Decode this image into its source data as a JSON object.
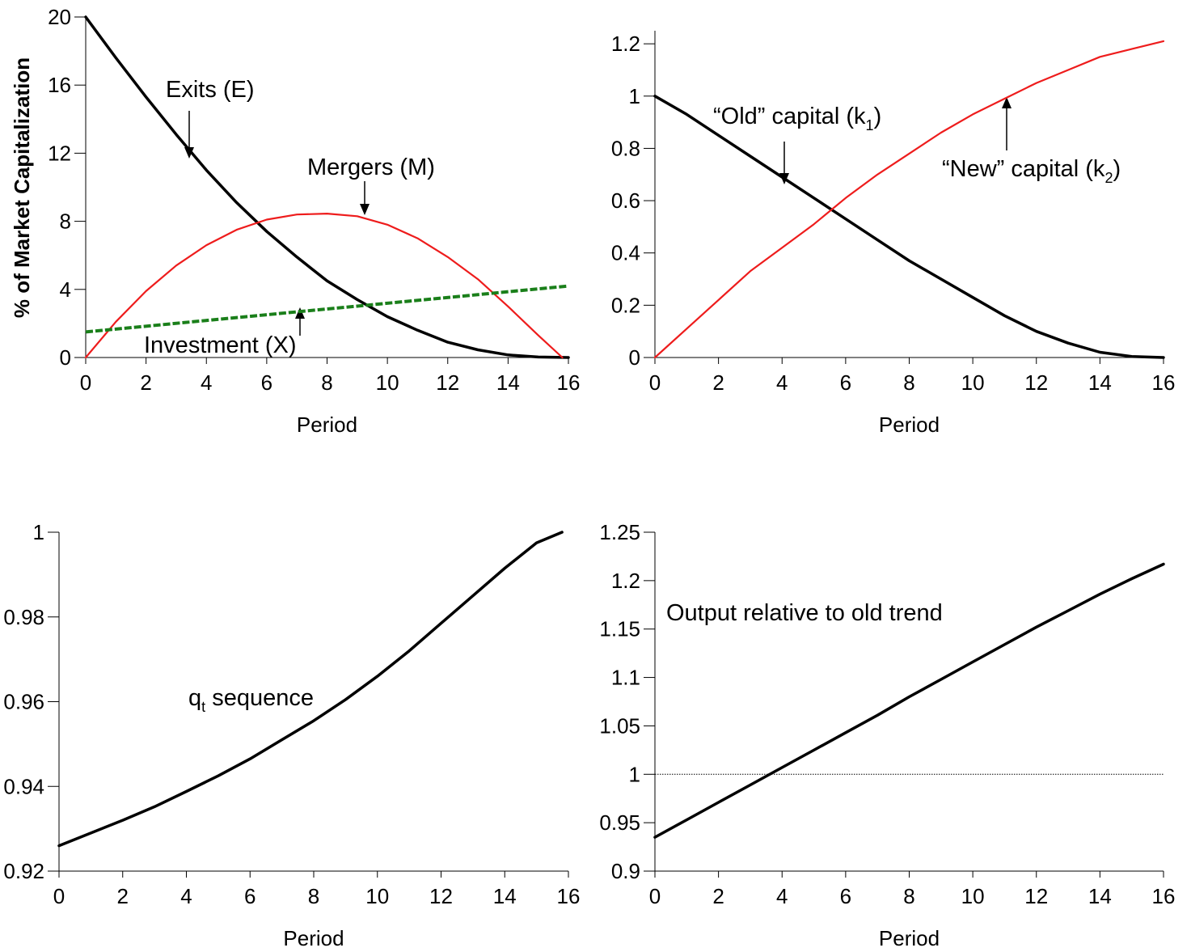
{
  "colors": {
    "black": "#000000",
    "red": "#ee1c1c",
    "green": "#1a7f1a"
  },
  "chart_data": [
    {
      "type": "line",
      "xlabel": "Period",
      "ylabel": "% of Market Capitalization",
      "xlim": [
        0,
        16
      ],
      "ylim": [
        0,
        20
      ],
      "xticks": [
        "0",
        "2",
        "4",
        "6",
        "8",
        "10",
        "12",
        "14",
        "16"
      ],
      "yticks": [
        "0",
        "4",
        "8",
        "12",
        "16",
        "20"
      ],
      "grid": false,
      "series": [
        {
          "name": "Exits (E)",
          "color": "#000000",
          "style": "solid-thick",
          "x": [
            0,
            1,
            2,
            3,
            4,
            5,
            6,
            7,
            8,
            9,
            10,
            11,
            12,
            13,
            14,
            15,
            16
          ],
          "y": [
            20,
            17.6,
            15.3,
            13.1,
            11.0,
            9.1,
            7.4,
            5.9,
            4.5,
            3.4,
            2.4,
            1.6,
            0.9,
            0.45,
            0.15,
            0.03,
            0
          ]
        },
        {
          "name": "Mergers (M)",
          "color": "#ee1c1c",
          "style": "solid",
          "x": [
            0,
            1,
            2,
            3,
            4,
            5,
            6,
            7,
            8,
            9,
            10,
            11,
            12,
            13,
            14,
            15,
            15.8
          ],
          "y": [
            0,
            2.1,
            3.9,
            5.4,
            6.6,
            7.5,
            8.1,
            8.4,
            8.45,
            8.3,
            7.8,
            7.0,
            5.9,
            4.6,
            3.0,
            1.3,
            0
          ]
        },
        {
          "name": "Investment (X)",
          "color": "#1a7f1a",
          "style": "dashed",
          "x": [
            0,
            16
          ],
          "y": [
            1.5,
            4.2
          ]
        }
      ],
      "annotations": [
        "Exits (E)",
        "Mergers (M)",
        "Investment (X)"
      ]
    },
    {
      "type": "line",
      "xlabel": "Period",
      "xlim": [
        0,
        16
      ],
      "ylim": [
        0,
        1.25
      ],
      "xticks": [
        "0",
        "2",
        "4",
        "6",
        "8",
        "10",
        "12",
        "14",
        "16"
      ],
      "yticks": [
        "0",
        "0.2",
        "0.4",
        "0.6",
        "0.8",
        "1",
        "1.2"
      ],
      "grid": false,
      "series": [
        {
          "name": "“Old” capital (k1)",
          "color": "#000000",
          "style": "solid-thick",
          "x": [
            0,
            1,
            2,
            3,
            4,
            5,
            6,
            7,
            8,
            9,
            10,
            11,
            12,
            13,
            14,
            15,
            16
          ],
          "y": [
            1,
            0.93,
            0.85,
            0.77,
            0.69,
            0.61,
            0.53,
            0.45,
            0.37,
            0.3,
            0.23,
            0.16,
            0.1,
            0.055,
            0.02,
            0.004,
            0
          ]
        },
        {
          "name": "“New” capital (k2)",
          "color": "#ee1c1c",
          "style": "solid",
          "x": [
            0,
            1,
            2,
            3,
            4,
            5,
            6,
            7,
            8,
            9,
            10,
            11,
            12,
            13,
            14,
            15,
            16
          ],
          "y": [
            0,
            0.11,
            0.22,
            0.33,
            0.42,
            0.51,
            0.61,
            0.7,
            0.78,
            0.86,
            0.93,
            0.99,
            1.05,
            1.1,
            1.15,
            1.18,
            1.21
          ]
        }
      ],
      "annotations": [
        "“Old” capital (k",
        "1",
        ")",
        "“New” capital (k",
        "2",
        ")"
      ]
    },
    {
      "type": "line",
      "xlabel": "Period",
      "xlim": [
        0,
        16
      ],
      "ylim": [
        0.92,
        1
      ],
      "xticks": [
        "0",
        "2",
        "4",
        "6",
        "8",
        "10",
        "12",
        "14",
        "16"
      ],
      "yticks": [
        "0.92",
        "0.94",
        "0.96",
        "0.98",
        "1"
      ],
      "grid": false,
      "series": [
        {
          "name": "qt sequence",
          "color": "#000000",
          "style": "solid-thick",
          "x": [
            0,
            1,
            2,
            3,
            4,
            5,
            6,
            7,
            8,
            9,
            10,
            11,
            12,
            13,
            14,
            15,
            15.8
          ],
          "y": [
            0.926,
            0.929,
            0.932,
            0.9352,
            0.9388,
            0.9425,
            0.9465,
            0.951,
            0.9555,
            0.9605,
            0.966,
            0.972,
            0.9785,
            0.985,
            0.9915,
            0.9975,
            1.0
          ]
        }
      ],
      "annotations": [
        "q",
        "t",
        " sequence"
      ]
    },
    {
      "type": "line",
      "xlabel": "Period",
      "xlim": [
        0,
        16
      ],
      "ylim": [
        0.9,
        1.25
      ],
      "xticks": [
        "0",
        "2",
        "4",
        "6",
        "8",
        "10",
        "12",
        "14",
        "16"
      ],
      "yticks": [
        "0.9",
        "0.95",
        "1",
        "1.05",
        "1.1",
        "1.15",
        "1.2",
        "1.25"
      ],
      "grid": false,
      "reference_line": 1.0,
      "series": [
        {
          "name": "Output relative to old trend",
          "color": "#000000",
          "style": "solid-thick",
          "x": [
            0,
            1,
            2,
            3,
            4,
            5,
            6,
            7,
            8,
            9,
            10,
            11,
            12,
            13,
            14,
            15,
            16
          ],
          "y": [
            0.935,
            0.953,
            0.971,
            0.989,
            1.007,
            1.025,
            1.043,
            1.061,
            1.08,
            1.098,
            1.116,
            1.134,
            1.152,
            1.169,
            1.186,
            1.202,
            1.217
          ]
        }
      ],
      "annotations": [
        "Output relative to old trend"
      ]
    }
  ]
}
